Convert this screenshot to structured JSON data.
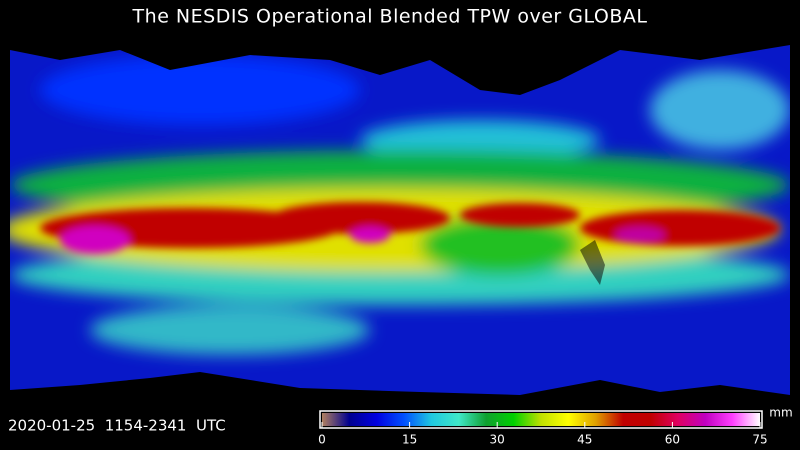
{
  "title": "The NESDIS Operational Blended TPW over GLOBAL",
  "timestamp": "2020-01-25  1154-2341  UTC",
  "colorbar": {
    "unit": "mm",
    "range": [
      0,
      75
    ],
    "ticks": [
      0,
      15,
      30,
      45,
      60,
      75
    ],
    "colors": [
      "#b08060",
      "#000090",
      "#0000e0",
      "#0050ff",
      "#20c8e0",
      "#40e8c8",
      "#10a030",
      "#00d000",
      "#c0e000",
      "#ffff00",
      "#e0a000",
      "#c00000",
      "#c00000",
      "#e00060",
      "#c000c0",
      "#ff40ff",
      "#ffffff"
    ]
  }
}
